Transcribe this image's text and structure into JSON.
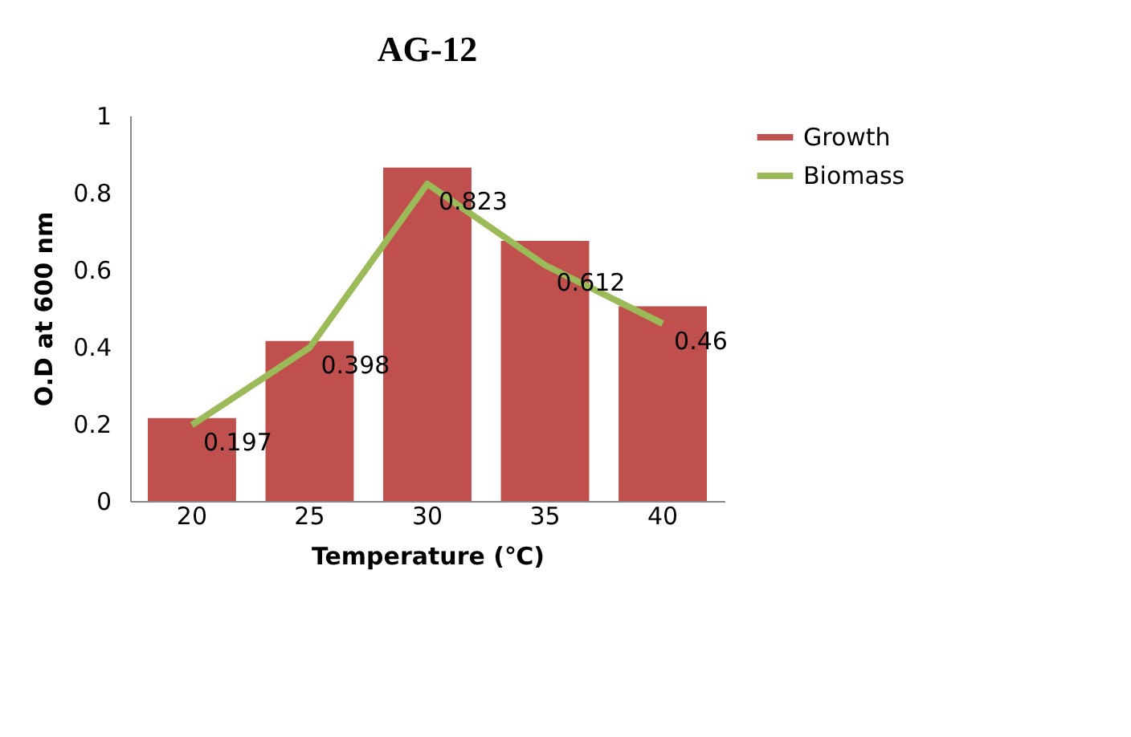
{
  "chart_data": {
    "type": "bar",
    "title": "AG-12",
    "xlabel": "Temperature (℃)",
    "ylabel": "O.D at 600 nm",
    "categories": [
      "20",
      "25",
      "30",
      "35",
      "40"
    ],
    "series": [
      {
        "name": "Growth",
        "color": "#c0504d",
        "values": [
          0.215,
          0.415,
          0.865,
          0.675,
          0.505
        ]
      },
      {
        "name": "Biomass",
        "type": "line",
        "color": "#9bbb59",
        "values": [
          0.197,
          0.398,
          0.823,
          0.612,
          0.46
        ],
        "value_labels": [
          "0.197",
          "0.398",
          "0.823",
          "0.612",
          "0.46"
        ]
      }
    ],
    "ylim": [
      0,
      1
    ],
    "yticks": [
      0,
      0.2,
      0.4,
      0.6,
      0.8,
      1
    ],
    "grid": false,
    "legend": "right",
    "marker": "none",
    "line_style": "solid"
  }
}
